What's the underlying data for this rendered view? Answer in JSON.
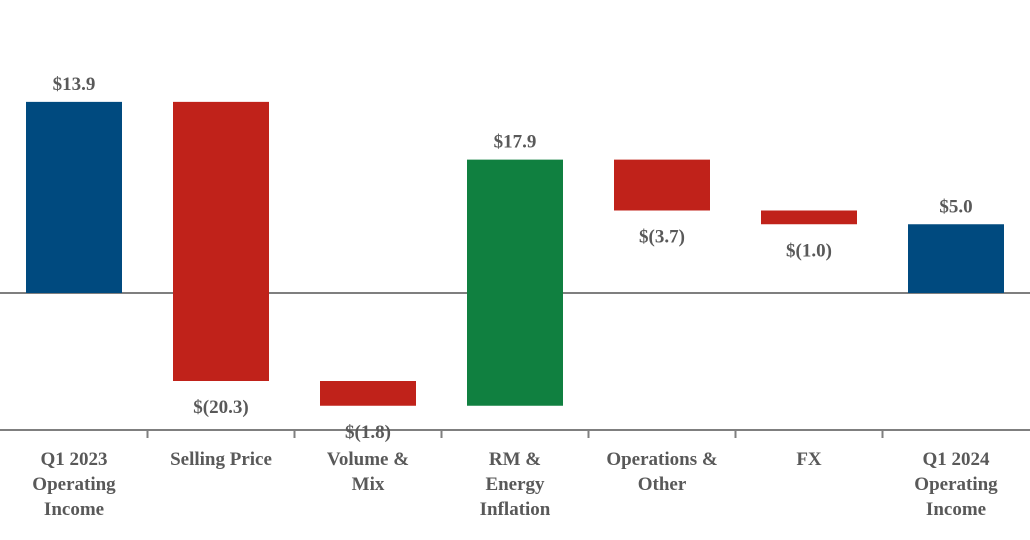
{
  "chart_data": {
    "type": "bar",
    "subtype": "waterfall",
    "categories": [
      [
        "Q1 2023",
        "Operating",
        "Income"
      ],
      [
        "Selling Price"
      ],
      [
        "Volume &",
        "Mix"
      ],
      [
        "RM &",
        "Energy",
        "Inflation"
      ],
      [
        "Operations &",
        "Other"
      ],
      [
        "FX"
      ],
      [
        "Q1 2024",
        "Operating",
        "Income"
      ]
    ],
    "values": [
      13.9,
      -20.3,
      -1.8,
      17.9,
      -3.7,
      -1.0,
      5.0
    ],
    "bar_kinds": [
      "total",
      "delta",
      "delta",
      "delta",
      "delta",
      "delta",
      "total"
    ],
    "data_labels": [
      "$13.9",
      "$(20.3)",
      "$(1.8)",
      "$17.9",
      "$(3.7)",
      "$(1.0)",
      "$5.0"
    ],
    "title": "",
    "xlabel": "",
    "ylabel": "",
    "ylim": [
      -10,
      14
    ],
    "grid": false,
    "legend": "none",
    "colors": {
      "total": "#004A7F",
      "decrease": "#C0221A",
      "increase": "#108040",
      "text": "#595959",
      "axis": "#7F7F7F"
    }
  }
}
